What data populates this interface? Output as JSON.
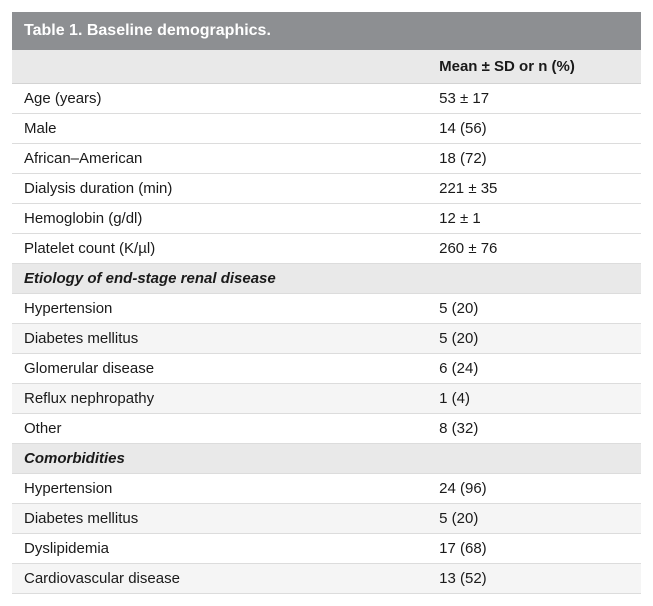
{
  "table": {
    "title": "Table 1. Baseline demographics.",
    "value_header": "Mean ± SD or n (%)",
    "top_rows": [
      {
        "label": "Age (years)",
        "value": "53 ± 17",
        "alt": false
      },
      {
        "label": "Male",
        "value": "14 (56)",
        "alt": false
      },
      {
        "label": "African–American",
        "value": "18 (72)",
        "alt": false
      },
      {
        "label": "Dialysis duration (min)",
        "value": "221 ± 35",
        "alt": false
      },
      {
        "label": "Hemoglobin (g/dl)",
        "value": "12 ± 1",
        "alt": false
      },
      {
        "label": "Platelet count (K/µl)",
        "value": "260 ± 76",
        "alt": false
      }
    ],
    "section1_title": "Etiology of end-stage renal disease",
    "section1_rows": [
      {
        "label": "Hypertension",
        "value": "5 (20)",
        "alt": false
      },
      {
        "label": "Diabetes mellitus",
        "value": "5 (20)",
        "alt": true
      },
      {
        "label": "Glomerular disease",
        "value": "6 (24)",
        "alt": false
      },
      {
        "label": "Reflux nephropathy",
        "value": "1 (4)",
        "alt": true
      },
      {
        "label": "Other",
        "value": "8 (32)",
        "alt": false
      }
    ],
    "section2_title": "Comorbidities",
    "section2_rows": [
      {
        "label": "Hypertension",
        "value": "24 (96)",
        "alt": false
      },
      {
        "label": "Diabetes mellitus",
        "value": "5 (20)",
        "alt": true
      },
      {
        "label": "Dyslipidemia",
        "value": "17 (68)",
        "alt": false
      },
      {
        "label": "Cardiovascular disease",
        "value": "13 (52)",
        "alt": true
      }
    ],
    "colors": {
      "title_bg": "#8d8f92",
      "title_text": "#ffffff",
      "header_bg": "#e9e9e9",
      "row_border": "#dcdcdc",
      "alt_bg": "#f5f5f5",
      "body_bg": "#ffffff"
    },
    "fontsize_title": 16,
    "fontsize_body": 15
  }
}
